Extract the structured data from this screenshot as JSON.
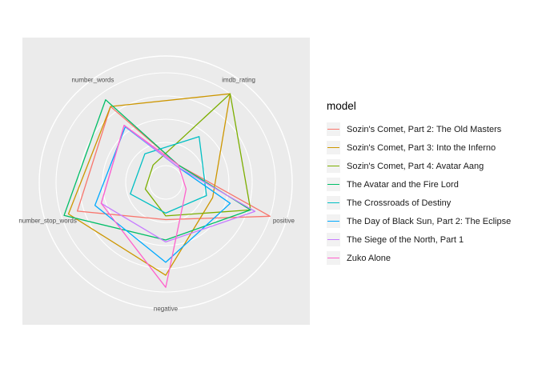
{
  "chart_data": {
    "type": "radar",
    "axes": [
      "imdb_rating",
      "positive",
      "negative",
      "number_stop_words",
      "number_words"
    ],
    "ylim": [
      0,
      1
    ],
    "grid": true,
    "legend_position": "right",
    "legend_title": "model",
    "series": [
      {
        "name": "Sozin's Comet, Part 2: The Old Masters",
        "color": "#F8766D",
        "values": [
          0.05,
          1.0,
          0.22,
          0.82,
          0.83
        ]
      },
      {
        "name": "Sozin's Comet, Part 3: Into the Inferno",
        "color": "#CD9600",
        "values": [
          1.0,
          0.35,
          0.82,
          0.92,
          0.83
        ]
      },
      {
        "name": "Sozin's Comet, Part 4: Avatar Aang",
        "color": "#7CAE00",
        "values": [
          1.0,
          0.78,
          0.18,
          0.05,
          0.05
        ]
      },
      {
        "name": "The Avatar and the Fire Lord",
        "color": "#00BE67",
        "values": [
          0.05,
          0.78,
          0.44,
          0.97,
          0.92
        ]
      },
      {
        "name": "The Crossroads of Destiny",
        "color": "#00BFC4",
        "values": [
          0.43,
          0.28,
          0.15,
          0.22,
          0.2
        ]
      },
      {
        "name": "The Day of Black Sun, Part 2: The Eclipse",
        "color": "#00A9FF",
        "values": [
          0.03,
          0.55,
          0.68,
          0.62,
          0.56
        ]
      },
      {
        "name": "The Siege of the North, Part 1",
        "color": "#C77CFF",
        "values": [
          0.03,
          0.83,
          0.46,
          0.55,
          0.58
        ]
      },
      {
        "name": "Zuko Alone",
        "color": "#FF61CC",
        "values": [
          0.05,
          0.05,
          0.95,
          0.55,
          0.58
        ]
      }
    ]
  }
}
